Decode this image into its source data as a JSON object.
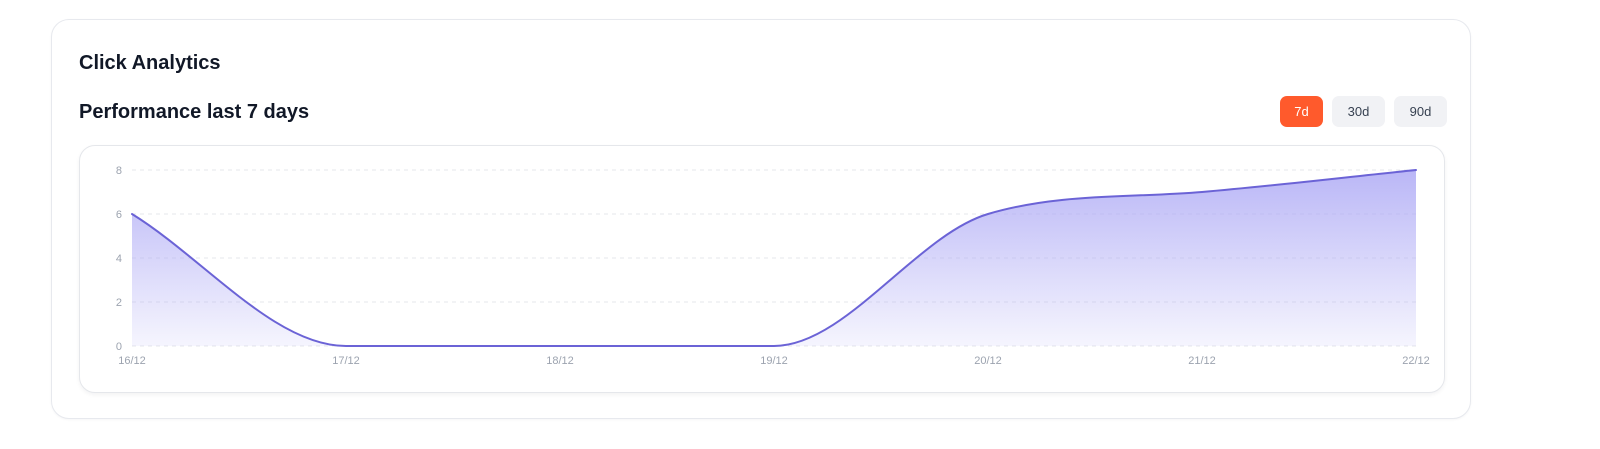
{
  "card": {
    "title": "Click Analytics",
    "section_title": "Performance last 7 days"
  },
  "range_selector": {
    "selected": "7d",
    "options": [
      {
        "label": "7d"
      },
      {
        "label": "30d"
      },
      {
        "label": "90d"
      }
    ]
  },
  "colors": {
    "accent": "#ff5a2c",
    "line": "#6b63d6",
    "area_top": "#aeaaf5",
    "grid": "#e5e7eb"
  },
  "chart_data": {
    "type": "area",
    "title": "",
    "xlabel": "",
    "ylabel": "",
    "categories": [
      "16/12",
      "17/12",
      "18/12",
      "19/12",
      "20/12",
      "21/12",
      "22/12"
    ],
    "series": [
      {
        "values": [
          6,
          0,
          0,
          0,
          6,
          7,
          8
        ]
      }
    ],
    "ylim": [
      0,
      8
    ],
    "y_ticks": [
      0,
      2,
      4,
      6,
      8
    ],
    "grid": true,
    "curve": "smooth",
    "legend": "none"
  }
}
